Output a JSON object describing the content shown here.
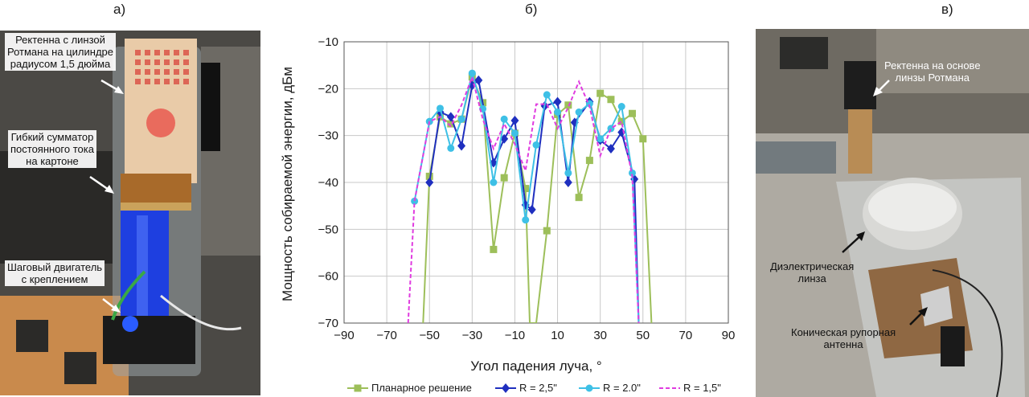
{
  "panels": {
    "a": "а)",
    "b": "б)",
    "v": "в)"
  },
  "photo_a": {
    "labels": {
      "rectenna": "Ректенна с линзой\nРотмана на цилиндре\nрадиусом 1,5 дюйма",
      "combiner": "Гибкий сумматор\nпостоянного тока\nна картоне",
      "motor": "Шаговый двигатель\nс креплением"
    }
  },
  "photo_v": {
    "labels": {
      "rectenna": "Ректенна на основе\nлинзы Ротмана",
      "lens": "Диэлектрическая\nлинза",
      "horn": "Коническая рупорная\nантенна"
    }
  },
  "chart_data": {
    "type": "line",
    "xlabel": "Угол падения луча, °",
    "ylabel": "Мощность собираемой энергии, дБм",
    "xlim": [
      -90,
      90
    ],
    "ylim": [
      -70,
      -10
    ],
    "xticks": [
      -90,
      -70,
      -50,
      -30,
      -10,
      10,
      30,
      50,
      70,
      90
    ],
    "yticks": [
      -70,
      -60,
      -50,
      -40,
      -30,
      -20,
      -10
    ],
    "grid": true,
    "legend_position": "bottom",
    "series": [
      {
        "name": "Планарное решение",
        "color": "#9dbf5a",
        "marker": "square",
        "dash": false,
        "x": [
          -53,
          -50,
          -45,
          -40,
          -35,
          -30,
          -25,
          -20,
          -15,
          -10,
          -5,
          -3,
          0,
          5,
          10,
          15,
          20,
          25,
          30,
          35,
          40,
          45,
          50,
          54
        ],
        "y": [
          -70,
          -38.7,
          -26,
          -27.5,
          -26.5,
          -17.5,
          -23,
          -54.3,
          -39,
          -29.5,
          -41.3,
          -70,
          -70,
          -50.3,
          -25.5,
          -23.5,
          -43.2,
          -35.3,
          -21,
          -22.3,
          -27,
          -25.3,
          -30.7,
          -70
        ]
      },
      {
        "name": "R = 2,5\"",
        "color": "#1f2fbf",
        "marker": "diamond",
        "dash": false,
        "x": [
          -50,
          -45,
          -40,
          -35,
          -30,
          -27,
          -20,
          -15,
          -10,
          -5,
          -2,
          4,
          10,
          15,
          18,
          25,
          30,
          35,
          40,
          46,
          48
        ],
        "y": [
          -40,
          -25,
          -26,
          -32.2,
          -19.3,
          -18.2,
          -35.8,
          -30.7,
          -26.8,
          -44.8,
          -45.8,
          -23.7,
          -22.8,
          -40,
          -27.2,
          -22.8,
          -31,
          -32.8,
          -29.3,
          -39.3,
          -70
        ]
      },
      {
        "name": "R = 2.0\"",
        "color": "#3ec0e6",
        "marker": "circle",
        "dash": false,
        "x": [
          -57,
          -50,
          -45,
          -40,
          -35,
          -30,
          -25,
          -20,
          -15,
          -10,
          -5,
          0,
          5,
          10,
          15,
          20,
          25,
          30,
          35,
          40,
          45,
          48
        ],
        "y": [
          -44,
          -27,
          -24.2,
          -32.7,
          -26.5,
          -16.7,
          -24.3,
          -40,
          -26.5,
          -29.5,
          -48,
          -32,
          -21.3,
          -25,
          -38,
          -25,
          -23.2,
          -30.7,
          -28.5,
          -23.8,
          -38,
          -70
        ]
      },
      {
        "name": "R = 1,5\"",
        "color": "#e03ce0",
        "marker": "none",
        "dash": true,
        "x": [
          -60,
          -57,
          -50,
          -45,
          -40,
          -35,
          -30,
          -25,
          -20,
          -15,
          -10,
          -5,
          0,
          5,
          10,
          15,
          20,
          25,
          30,
          35,
          40,
          45,
          48
        ],
        "y": [
          -70,
          -44,
          -27,
          -26,
          -28,
          -23.5,
          -17.5,
          -26.5,
          -32.8,
          -27.5,
          -31.8,
          -37.5,
          -23.3,
          -23.3,
          -28.5,
          -24,
          -18.5,
          -23.8,
          -34.3,
          -28.5,
          -27,
          -38.7,
          -70
        ]
      }
    ]
  }
}
